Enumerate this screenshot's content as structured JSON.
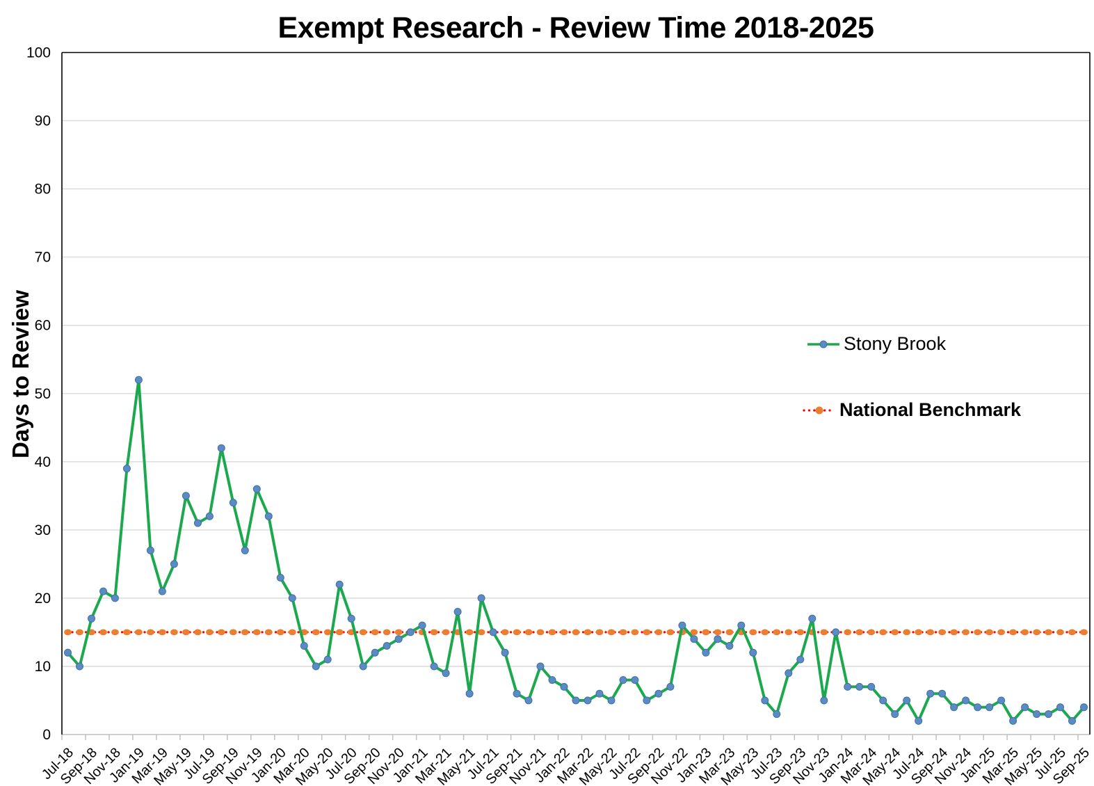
{
  "chart_data": {
    "type": "line",
    "title": "Exempt Research - Review Time 2018-2025",
    "xlabel": "",
    "ylabel": "Days to Review",
    "ylim": [
      0,
      100
    ],
    "ytick_step": 10,
    "grid": true,
    "legend_position": "right-center",
    "xtick_every": 2,
    "x": [
      "Jul-18",
      "Aug-18",
      "Sep-18",
      "Oct-18",
      "Nov-18",
      "Dec-18",
      "Jan-19",
      "Feb-19",
      "Mar-19",
      "Apr-19",
      "May-19",
      "Jun-19",
      "Jul-19",
      "Aug-19",
      "Sep-19",
      "Oct-19",
      "Nov-19",
      "Dec-19",
      "Jan-20",
      "Feb-20",
      "Mar-20",
      "Apr-20",
      "May-20",
      "Jun-20",
      "Jul-20",
      "Aug-20",
      "Sep-20",
      "Oct-20",
      "Nov-20",
      "Dec-20",
      "Jan-21",
      "Feb-21",
      "Mar-21",
      "Apr-21",
      "May-21",
      "Jun-21",
      "Jul-21",
      "Aug-21",
      "Sep-21",
      "Oct-21",
      "Nov-21",
      "Dec-21",
      "Jan-22",
      "Feb-22",
      "Mar-22",
      "Apr-22",
      "May-22",
      "Jun-22",
      "Jul-22",
      "Aug-22",
      "Sep-22",
      "Oct-22",
      "Nov-22",
      "Dec-22",
      "Jan-23",
      "Feb-23",
      "Mar-23",
      "Apr-23",
      "May-23",
      "Jun-23",
      "Jul-23",
      "Aug-23",
      "Sep-23",
      "Oct-23",
      "Nov-23",
      "Dec-23",
      "Jan-24",
      "Feb-24",
      "Mar-24",
      "Apr-24",
      "May-24",
      "Jun-24",
      "Jul-24",
      "Aug-24",
      "Sep-24",
      "Oct-24",
      "Nov-24",
      "Dec-24",
      "Jan-25",
      "Feb-25",
      "Mar-25",
      "Apr-25",
      "May-25",
      "Jun-25",
      "Jul-25",
      "Aug-25",
      "Sep-25"
    ],
    "series": [
      {
        "name": "Stony Brook",
        "type": "line",
        "color": "#1CA94E",
        "marker": "circle",
        "marker_color": "#5B8BC5",
        "values": [
          12,
          10,
          17,
          21,
          20,
          39,
          52,
          27,
          21,
          25,
          35,
          31,
          32,
          42,
          34,
          27,
          36,
          32,
          23,
          20,
          13,
          10,
          11,
          22,
          17,
          10,
          12,
          13,
          14,
          15,
          16,
          10,
          9,
          18,
          6,
          20,
          15,
          12,
          6,
          5,
          10,
          8,
          7,
          5,
          5,
          6,
          5,
          8,
          8,
          5,
          6,
          7,
          16,
          14,
          12,
          14,
          13,
          16,
          12,
          5,
          3,
          9,
          11,
          17,
          5,
          15,
          7,
          7,
          7,
          5,
          3,
          5,
          2,
          6,
          6,
          4,
          5,
          4,
          4,
          5,
          2,
          4,
          3,
          3,
          4,
          2,
          4
        ]
      },
      {
        "name": "National Benchmark",
        "type": "dotted-line",
        "color": "#FF0000",
        "marker": "ellipse",
        "marker_color": "#ED7D31",
        "constant_value": 15
      }
    ],
    "colors": {
      "gridline": "#D9D9D9",
      "axis_line": "#BFBFBF",
      "border": "#000000",
      "tick_label": "#000000"
    }
  }
}
